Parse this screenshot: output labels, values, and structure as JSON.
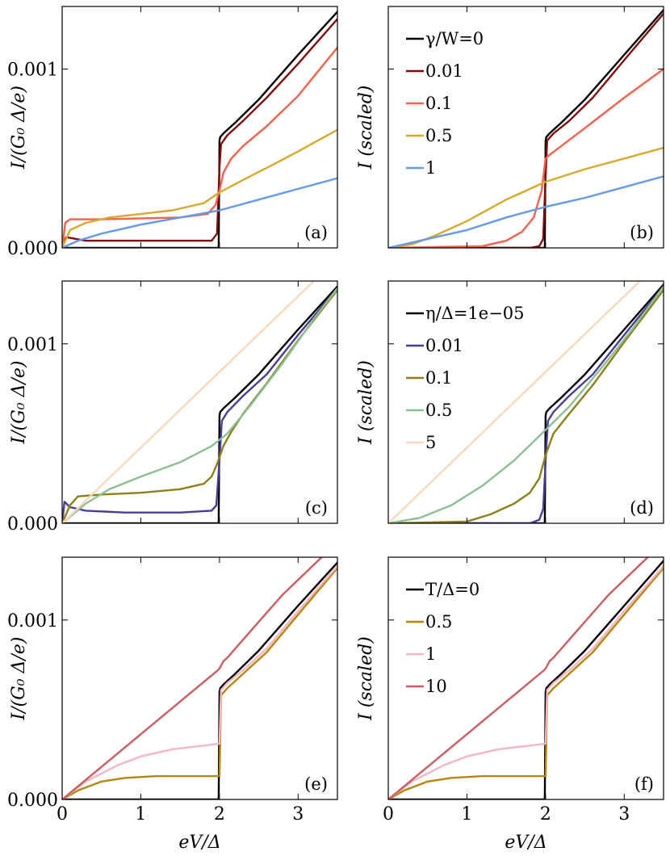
{
  "chart_data": [
    {
      "panel_label": "(a)",
      "type": "line",
      "ylabel": "I/(G₀ Δ/e)",
      "xlabel": "",
      "xlim": [
        0,
        3.5
      ],
      "ylim": [
        0,
        0.00135
      ],
      "yticks": [
        "0.000",
        "0.001"
      ],
      "xticks": [
        "",
        "",
        "",
        ""
      ],
      "legend_title": "",
      "series": [
        {
          "name": "γ/W=0",
          "color": "#000000",
          "x": [
            0,
            1.99,
            2.0,
            2.01,
            2.05,
            2.1,
            2.2,
            2.5,
            3.0,
            3.5
          ],
          "y": [
            0,
            0,
            0.0006,
            0.00062,
            0.00064,
            0.00066,
            0.0007,
            0.00083,
            0.00108,
            0.00132
          ]
        },
        {
          "name": "0.01",
          "color": "#7f0d0d",
          "x": [
            0,
            0.05,
            0.3,
            1.0,
            1.9,
            1.97,
            2.0,
            2.02,
            2.1,
            2.3,
            2.6,
            3.0,
            3.5
          ],
          "y": [
            0,
            6e-05,
            4e-05,
            4e-05,
            4e-05,
            8e-05,
            0.00045,
            0.00058,
            0.00063,
            0.00071,
            0.00084,
            0.00103,
            0.00128
          ]
        },
        {
          "name": "0.1",
          "color": "#f0624c",
          "x": [
            0,
            0.04,
            0.1,
            0.5,
            1.5,
            1.85,
            1.95,
            2.0,
            2.05,
            2.15,
            2.3,
            2.6,
            3.0,
            3.5
          ],
          "y": [
            0,
            0.00014,
            0.00016,
            0.00016,
            0.00017,
            0.00019,
            0.00024,
            0.00032,
            0.00042,
            0.0005,
            0.00057,
            0.00068,
            0.00085,
            0.00112
          ]
        },
        {
          "name": "0.5",
          "color": "#d9a92e",
          "x": [
            0,
            0.1,
            0.3,
            0.6,
            1.0,
            1.4,
            1.8,
            2.0,
            2.3,
            2.7,
            3.0,
            3.5
          ],
          "y": [
            0,
            0.0001,
            0.00014,
            0.00017,
            0.00019,
            0.00021,
            0.00025,
            0.00031,
            0.00038,
            0.00047,
            0.00054,
            0.00066
          ]
        },
        {
          "name": "1",
          "color": "#6699e8",
          "x": [
            0,
            0.2,
            0.5,
            1.0,
            1.5,
            2.0,
            2.5,
            3.0,
            3.5
          ],
          "y": [
            0,
            4e-05,
            8e-05,
            0.00013,
            0.00017,
            0.00021,
            0.00027,
            0.00033,
            0.00039
          ]
        }
      ]
    },
    {
      "panel_label": "(b)",
      "type": "line",
      "ylabel": "I (scaled)",
      "xlabel": "",
      "xlim": [
        0,
        3.5
      ],
      "ylim": [
        0,
        1.35
      ],
      "yticks": [],
      "xticks": [
        "",
        "",
        "",
        ""
      ],
      "legend_title": "γ/W=0",
      "series": [
        {
          "name": "γ/W=0",
          "color": "#000000",
          "x": [
            0,
            1.99,
            2.0,
            2.01,
            2.05,
            2.1,
            2.2,
            2.5,
            3.0,
            3.5
          ],
          "y": [
            0,
            0,
            0.6,
            0.62,
            0.64,
            0.66,
            0.7,
            0.83,
            1.08,
            1.33
          ]
        },
        {
          "name": "0.01",
          "color": "#7f0d0d",
          "x": [
            0,
            1.8,
            1.92,
            1.97,
            2.0,
            2.02,
            2.1,
            2.3,
            2.6,
            3.0,
            3.5
          ],
          "y": [
            0,
            0,
            0.01,
            0.05,
            0.4,
            0.6,
            0.64,
            0.71,
            0.84,
            1.05,
            1.31
          ]
        },
        {
          "name": "0.1",
          "color": "#f0624c",
          "x": [
            0,
            1.2,
            1.5,
            1.7,
            1.85,
            1.95,
            2.0,
            2.05,
            2.2,
            2.5,
            3.0,
            3.5
          ],
          "y": [
            0,
            0.01,
            0.04,
            0.09,
            0.17,
            0.32,
            0.5,
            0.52,
            0.57,
            0.67,
            0.84,
            1.0
          ]
        },
        {
          "name": "0.5",
          "color": "#d9a92e",
          "x": [
            0,
            0.3,
            0.6,
            1.0,
            1.5,
            2.0,
            2.5,
            3.0,
            3.5
          ],
          "y": [
            0,
            0.02,
            0.07,
            0.15,
            0.27,
            0.37,
            0.44,
            0.5,
            0.56
          ]
        },
        {
          "name": "1",
          "color": "#6699e8",
          "x": [
            0,
            0.5,
            1.0,
            1.5,
            2.0,
            2.5,
            3.0,
            3.5
          ],
          "y": [
            0,
            0.05,
            0.1,
            0.17,
            0.23,
            0.28,
            0.34,
            0.4
          ]
        }
      ]
    },
    {
      "panel_label": "(c)",
      "type": "line",
      "ylabel": "I/(G₀ Δ/e)",
      "xlabel": "",
      "xlim": [
        0,
        3.5
      ],
      "ylim": [
        0,
        0.00135
      ],
      "yticks": [
        "0.000",
        "0.001"
      ],
      "xticks": [
        "",
        "",
        "",
        ""
      ],
      "legend_title": "",
      "series": [
        {
          "name": "η/Δ=1e−05",
          "color": "#000000",
          "x": [
            0,
            1.99,
            2.0,
            2.01,
            2.05,
            2.1,
            2.2,
            2.5,
            3.0,
            3.5
          ],
          "y": [
            0,
            0,
            0.0006,
            0.00062,
            0.00064,
            0.00066,
            0.0007,
            0.00083,
            0.00108,
            0.00132
          ]
        },
        {
          "name": "0.01",
          "color": "#4a3d94",
          "x": [
            0,
            0.03,
            0.1,
            0.3,
            0.8,
            1.5,
            1.9,
            1.96,
            2.0,
            2.03,
            2.1,
            2.3,
            2.6,
            3.0,
            3.5
          ],
          "y": [
            0,
            0.00012,
            9e-05,
            7e-05,
            6e-05,
            6e-05,
            7e-05,
            0.0001,
            0.00035,
            0.00057,
            0.00062,
            0.00071,
            0.00083,
            0.00105,
            0.00131
          ]
        },
        {
          "name": "0.1",
          "color": "#8c8019",
          "x": [
            0,
            0.1,
            0.2,
            0.5,
            1.0,
            1.5,
            1.8,
            1.9,
            1.97,
            2.05,
            2.15,
            2.3,
            2.6,
            3.0,
            3.5
          ],
          "y": [
            0,
            0.0001,
            0.00015,
            0.00016,
            0.00017,
            0.00019,
            0.00022,
            0.00026,
            0.00033,
            0.00043,
            0.00051,
            0.00061,
            0.00078,
            0.00102,
            0.0013
          ]
        },
        {
          "name": "0.5",
          "color": "#8dbf93",
          "x": [
            0,
            0.3,
            0.6,
            1.0,
            1.5,
            1.9,
            2.1,
            2.4,
            2.8,
            3.2,
            3.5
          ],
          "y": [
            0,
            0.00011,
            0.00019,
            0.00026,
            0.00034,
            0.00043,
            0.0005,
            0.00066,
            0.00089,
            0.00114,
            0.00131
          ]
        },
        {
          "name": "5",
          "color": "#f9d9bb",
          "x": [
            0,
            3.2
          ],
          "y": [
            0,
            0.00135
          ]
        }
      ]
    },
    {
      "panel_label": "(d)",
      "type": "line",
      "ylabel": "I (scaled)",
      "xlabel": "",
      "xlim": [
        0,
        3.5
      ],
      "ylim": [
        0,
        1.35
      ],
      "yticks": [],
      "xticks": [
        "",
        "",
        "",
        ""
      ],
      "legend_title": "η/Δ=1e−05",
      "series": [
        {
          "name": "η/Δ=1e−05",
          "color": "#000000",
          "x": [
            0,
            1.99,
            2.0,
            2.01,
            2.05,
            2.1,
            2.2,
            2.5,
            3.0,
            3.5
          ],
          "y": [
            0,
            0,
            0.6,
            0.62,
            0.64,
            0.66,
            0.7,
            0.83,
            1.08,
            1.33
          ]
        },
        {
          "name": "0.01",
          "color": "#4a3d94",
          "x": [
            0,
            1.8,
            1.92,
            1.97,
            2.0,
            2.03,
            2.1,
            2.3,
            2.6,
            3.0,
            3.5
          ],
          "y": [
            0,
            0,
            0.02,
            0.08,
            0.35,
            0.57,
            0.62,
            0.71,
            0.83,
            1.05,
            1.32
          ]
        },
        {
          "name": "0.1",
          "color": "#8c8019",
          "x": [
            0,
            1.0,
            1.3,
            1.6,
            1.8,
            1.92,
            2.0,
            2.1,
            2.3,
            2.6,
            3.0,
            3.5
          ],
          "y": [
            0,
            0.01,
            0.05,
            0.11,
            0.17,
            0.25,
            0.38,
            0.5,
            0.61,
            0.77,
            1.01,
            1.3
          ]
        },
        {
          "name": "0.5",
          "color": "#8dbf93",
          "x": [
            0,
            0.4,
            0.8,
            1.2,
            1.6,
            2.0,
            2.3,
            2.7,
            3.1,
            3.5
          ],
          "y": [
            0,
            0.03,
            0.1,
            0.21,
            0.35,
            0.52,
            0.65,
            0.86,
            1.08,
            1.32
          ]
        },
        {
          "name": "5",
          "color": "#f9d9bb",
          "x": [
            0,
            3.2
          ],
          "y": [
            0,
            1.35
          ]
        }
      ]
    },
    {
      "panel_label": "(e)",
      "type": "line",
      "ylabel": "I/(G₀ Δ/e)",
      "xlabel": "eV/Δ",
      "xlim": [
        0,
        3.5
      ],
      "ylim": [
        0,
        0.00135
      ],
      "yticks": [
        "0.000",
        "0.001"
      ],
      "xticks": [
        "0",
        "1",
        "2",
        "3"
      ],
      "legend_title": "",
      "series": [
        {
          "name": "T/Δ=0",
          "color": "#000000",
          "x": [
            0,
            1.99,
            2.0,
            2.01,
            2.05,
            2.1,
            2.2,
            2.5,
            3.0,
            3.5
          ],
          "y": [
            0,
            0,
            0.0006,
            0.00062,
            0.00064,
            0.00066,
            0.0007,
            0.00083,
            0.00108,
            0.00132
          ]
        },
        {
          "name": "0.5",
          "color": "#b8860b",
          "x": [
            0,
            0.2,
            0.5,
            0.8,
            1.2,
            1.6,
            1.98,
            2.0,
            2.02,
            2.1,
            2.3,
            2.6,
            3.0,
            3.5
          ],
          "y": [
            0,
            5e-05,
            0.0001,
            0.00012,
            0.00013,
            0.00013,
            0.00013,
            0.00013,
            0.00058,
            0.00062,
            0.0007,
            0.00082,
            0.00103,
            0.00129
          ]
        },
        {
          "name": "1",
          "color": "#f5b5c4",
          "x": [
            0,
            0.3,
            0.7,
            1.0,
            1.4,
            1.8,
            1.98,
            2.0,
            2.02,
            2.1,
            2.3,
            2.6,
            3.0,
            3.5
          ],
          "y": [
            0,
            0.0001,
            0.00019,
            0.00024,
            0.00028,
            0.0003,
            0.00031,
            0.00031,
            0.00061,
            0.00065,
            0.00072,
            0.00084,
            0.00105,
            0.0013
          ]
        },
        {
          "name": "10",
          "color": "#c95d63",
          "x": [
            0,
            1.98,
            2.0,
            2.05,
            2.1,
            2.4,
            2.8,
            3.3
          ],
          "y": [
            0,
            0.00072,
            0.00073,
            0.00077,
            0.00079,
            0.00094,
            0.00114,
            0.00135
          ]
        }
      ]
    },
    {
      "panel_label": "(f)",
      "type": "line",
      "ylabel": "I (scaled)",
      "xlabel": "eV/Δ",
      "xlim": [
        0,
        3.5
      ],
      "ylim": [
        0,
        1.35
      ],
      "yticks": [],
      "xticks": [
        "0",
        "1",
        "2",
        "3"
      ],
      "legend_title": "T/Δ=0",
      "series": [
        {
          "name": "T/Δ=0",
          "color": "#000000",
          "x": [
            0,
            1.99,
            2.0,
            2.01,
            2.05,
            2.1,
            2.2,
            2.5,
            3.0,
            3.5
          ],
          "y": [
            0,
            0,
            0.6,
            0.62,
            0.64,
            0.66,
            0.7,
            0.83,
            1.08,
            1.33
          ]
        },
        {
          "name": "0.5",
          "color": "#b8860b",
          "x": [
            0,
            0.2,
            0.5,
            0.8,
            1.2,
            1.6,
            1.98,
            2.0,
            2.02,
            2.1,
            2.3,
            2.6,
            3.0,
            3.5
          ],
          "y": [
            0,
            0.05,
            0.1,
            0.12,
            0.13,
            0.13,
            0.13,
            0.13,
            0.58,
            0.62,
            0.7,
            0.82,
            1.03,
            1.29
          ]
        },
        {
          "name": "1",
          "color": "#f5b5c4",
          "x": [
            0,
            0.3,
            0.7,
            1.0,
            1.4,
            1.8,
            1.98,
            2.0,
            2.02,
            2.1,
            2.3,
            2.6,
            3.0,
            3.5
          ],
          "y": [
            0,
            0.1,
            0.19,
            0.24,
            0.28,
            0.3,
            0.31,
            0.31,
            0.61,
            0.65,
            0.72,
            0.84,
            1.05,
            1.3
          ]
        },
        {
          "name": "10",
          "color": "#c95d63",
          "x": [
            0,
            1.98,
            2.0,
            2.05,
            2.1,
            2.4,
            2.8,
            3.3
          ],
          "y": [
            0,
            0.72,
            0.73,
            0.77,
            0.79,
            0.94,
            1.14,
            1.35
          ]
        }
      ]
    }
  ]
}
